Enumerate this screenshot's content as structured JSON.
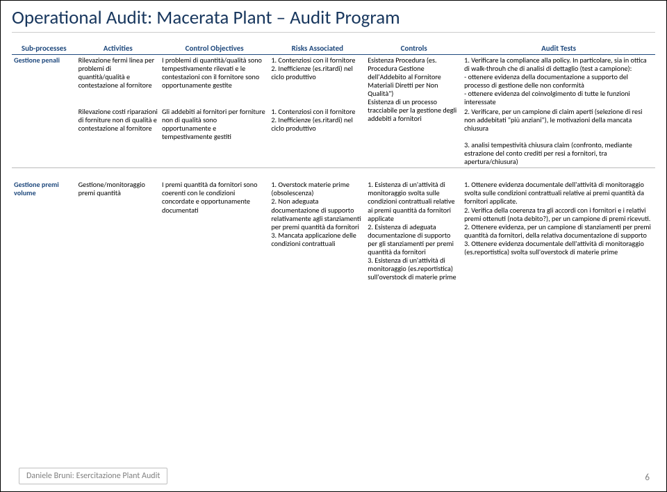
{
  "title": "Operational Audit: Macerata Plant – Audit Program",
  "headers": [
    "Sub-processes",
    "Activities",
    "Control Objectives",
    "Risks Associated",
    "Controls",
    "Audit Tests"
  ],
  "rows": [
    {
      "sub": "Gestione penali",
      "act": "Rilevazione fermi linea per problemi di quantità/qualità e contestazione al fornitore",
      "obj": "I problemi di quantità/qualità sono tempestivamente rilevati e le contestazioni con il fornitore sono opportunamente gestite",
      "risk": "1. Contenziosi con il fornitore\n2. Inefficienze (es.ritardi) nel ciclo produttivo",
      "ctrl": "Esistenza Procedura (es. Procedura Gestione dell'Addebito al Fornitore Materiali Diretti per Non Qualità\")\nEsistenza di un processo tracciabile per la gestione degli addebiti a fornitori",
      "test": "1. Verificare la compliance alla policy. In particolare, sia in ottica di walk-throuh che di analisi di dettaglio (test a campione):\n- ottenere evidenza della documentazione a supporto del processo di gestione delle non conformità\n- ottenere evidenza del coinvolgimento di tutte le funzioni interessate"
    },
    {
      "sub": "",
      "act": "Rilevazione costi riparazioni di forniture non di qualità e contestazione al fornitore",
      "obj": "Gli addebiti ai fornitori per forniture non di qualità sono opportunamente e tempestivamente gestiti",
      "risk": "1. Contenziosi con il fornitore\n2. Inefficienze (es.ritardi) nel ciclo produttivo",
      "ctrl": "",
      "test": "2. Verificare, per un campione di claim aperti (selezione di resi non addebitati \"più anziani\"), le motivazioni della mancata chiusura\n\n3. analisi tempestività chiusura claim (confronto, mediante estrazione del conto crediti per resi a fornitori, tra apertura/chiusura)"
    },
    {
      "sub": "Gestione premi volume",
      "act": "Gestione/monitoraggio premi quantità",
      "obj": "I premi quantità da fornitori sono coerenti con le condizioni concordate e opportunamente documentati",
      "risk": "1. Overstock materie prime (obsolescenza)\n2. Non adeguata documentazione di supporto relativamente agli stanziamenti per premi quantità da fornitori\n3. Mancata applicazione delle condizioni contrattuali",
      "ctrl": "1. Esistenza di un'attività di monitoraggio svolta sulle condizioni contrattuali relative ai premi quantità da fornitori applicate\n2. Esistenza di adeguata documentazione di supporto per gli stanziamenti per premi quantità da fornitori\n3. Esistenza di un'attività di monitoraggio (es.reportistica) sull'overstock di materie prime",
      "test": "1. Ottenere evidenza documentale dell'attività di monitoraggio svolta sulle condizioni contrattuali relative ai premi quantità da fornitori applicate.\n2. Verifica della coerenza tra gli accordi con i fornitori e i relativi premi ottenuti (nota debito?), per un campione di premi ricevuti.\n2. Ottenere evidenza, per un campione di stanziamenti per premi quantità da fornitori, della relativa documentazione di supporto\n3. Ottenere evidenza documentale dell'attività di monitoraggio (es.reportistica) svolta sull'overstock di materie prime"
    }
  ],
  "footer": "Daniele Bruni: Esercitazione Plant Audit",
  "pagenum": "6"
}
